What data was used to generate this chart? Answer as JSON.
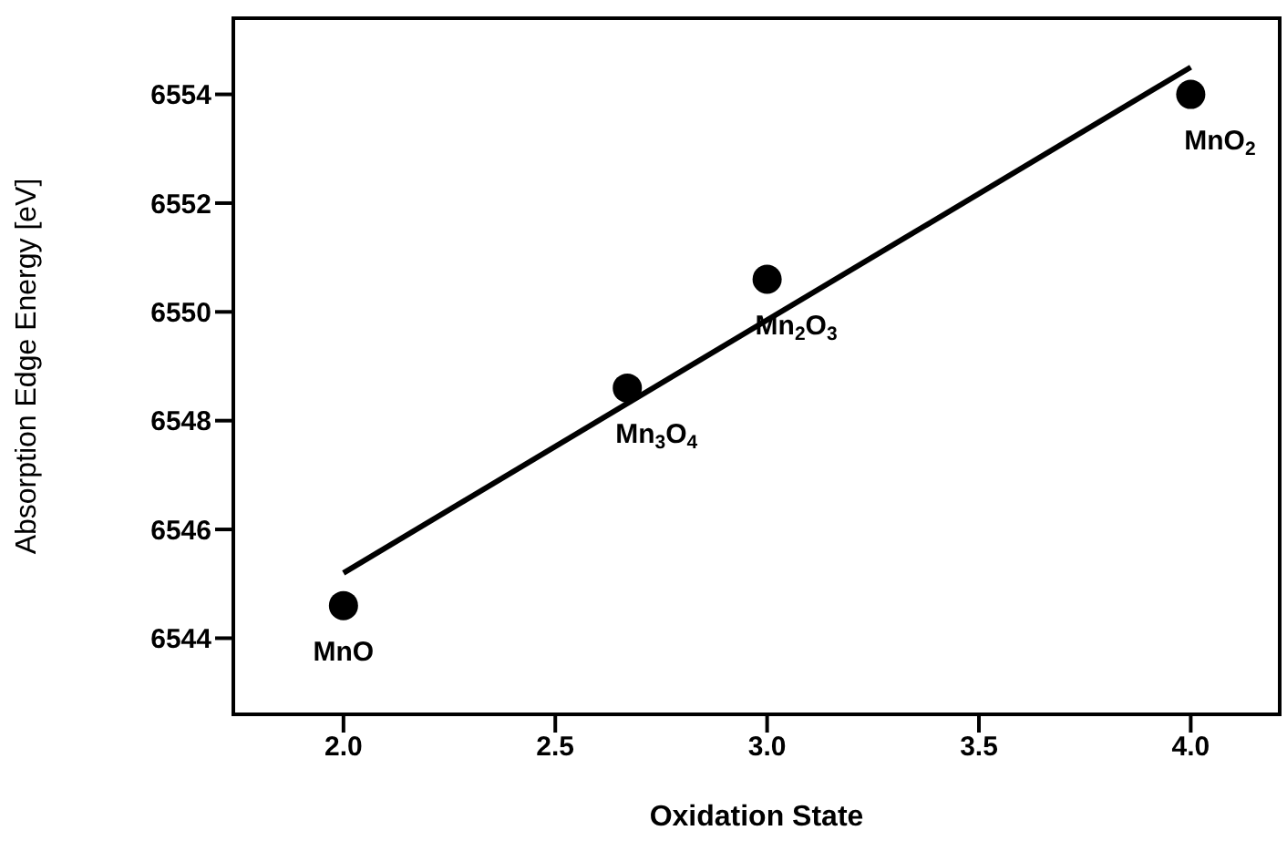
{
  "chart_data": {
    "type": "scatter",
    "xlabel": "Oxidation State",
    "ylabel": "Absorption Edge Energy [eV]",
    "x": [
      2.0,
      2.67,
      3.0,
      4.0
    ],
    "series": [
      {
        "color": "#000000",
        "marker": "circle",
        "values": [
          6544.6,
          6548.6,
          6550.6,
          6554.0
        ]
      },
      {
        "type": "line",
        "color": "#000000",
        "marker": "none",
        "line_style": "solid",
        "x": [
          2.0,
          4.0
        ],
        "values": [
          6545.2,
          6554.5
        ]
      }
    ],
    "xlim": [
      1.74,
      4.21
    ],
    "ylim": [
      6542.6,
      6555.4
    ],
    "xticks": [
      {
        "value": 2,
        "label": "2.0"
      },
      {
        "value": 2.5,
        "label": "2.5"
      },
      {
        "value": 3,
        "label": "3.0"
      },
      {
        "value": 3.5,
        "label": "3.5"
      },
      {
        "value": 4,
        "label": "4.0"
      }
    ],
    "yticks": [
      6544,
      6546,
      6548,
      6550,
      6552,
      6554
    ],
    "annotations": [
      {
        "text": "MnO",
        "x": 2.0,
        "y": 6544.6
      },
      {
        "text": "Mn$_{3}$O$_{4}$",
        "x": 2.67,
        "y": 6548.6
      },
      {
        "text": "Mn$_{2}$O$_{3}$",
        "x": 3.0,
        "y": 6550.6
      },
      {
        "text": "MnO$_{2}$",
        "x": 4.0,
        "y": 6554.0
      }
    ]
  }
}
